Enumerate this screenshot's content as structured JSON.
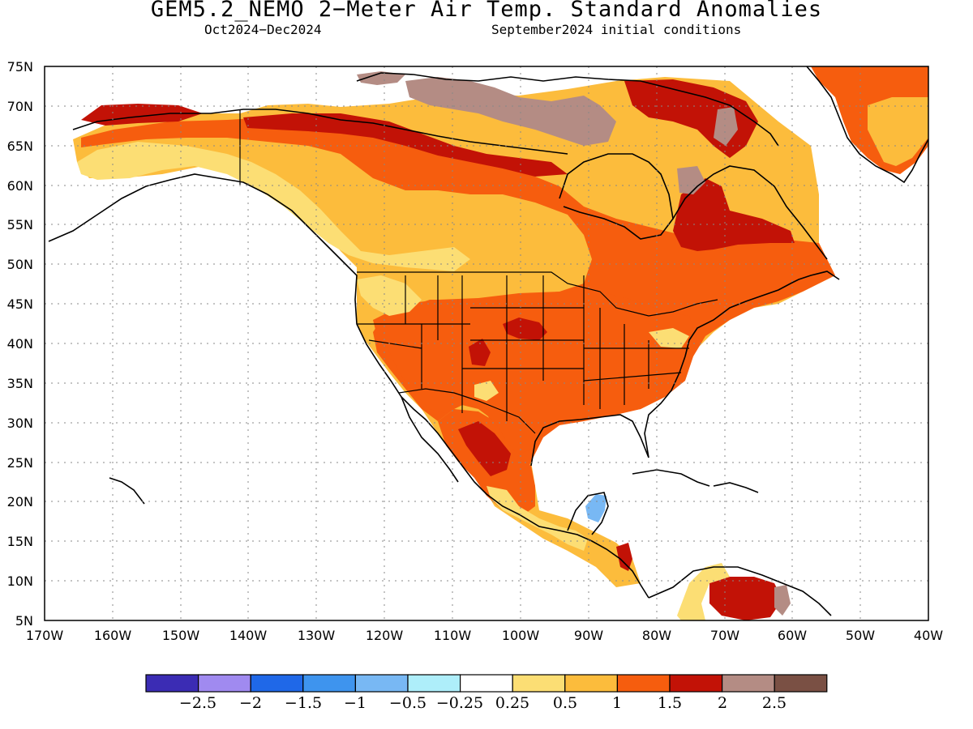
{
  "title": "GEM5.2_NEMO 2−Meter Air Temp. Standard Anomalies",
  "subtitle_left": "Oct2024−Dec2024",
  "subtitle_right": "September2024 initial conditions",
  "map": {
    "projection": "cylindrical equidistant",
    "lon_range": [
      -170,
      -40
    ],
    "lat_range": [
      5,
      75
    ],
    "grid": "dotted",
    "lat_ticks": [
      "5N",
      "10N",
      "15N",
      "20N",
      "25N",
      "30N",
      "35N",
      "40N",
      "45N",
      "50N",
      "55N",
      "60N",
      "65N",
      "70N",
      "75N"
    ],
    "lon_ticks": [
      "170W",
      "160W",
      "150W",
      "140W",
      "130W",
      "120W",
      "110W",
      "100W",
      "90W",
      "80W",
      "70W",
      "60W",
      "50W",
      "40W"
    ]
  },
  "colorbar": {
    "colors": [
      "#3b2cb4",
      "#a08af0",
      "#1f68e8",
      "#3e94ee",
      "#78b8f4",
      "#aeeefa",
      "#ffffff",
      "#fcde74",
      "#fcbc3c",
      "#f65d0e",
      "#c21206",
      "#b48c84",
      "#7a5044"
    ],
    "labels": [
      "−2.5",
      "−2",
      "−1.5",
      "−1",
      "−0.5",
      "−0.25",
      "0.25",
      "0.5",
      "1",
      "1.5",
      "2",
      "2.5"
    ]
  },
  "regions": [
    {
      "level": 7,
      "color": "#fcde74",
      "desc": "moderate warm anomaly (0.25 to 0.5)"
    },
    {
      "level": 8,
      "color": "#fcbc3c",
      "desc": "warm anomaly (0.5 to 1)"
    },
    {
      "level": 9,
      "color": "#f65d0e",
      "desc": "strong warm anomaly (1 to 1.5)"
    },
    {
      "level": 10,
      "color": "#c21206",
      "desc": "very strong warm anomaly (1.5 to 2)"
    },
    {
      "level": 11,
      "color": "#b48c84",
      "desc": "extreme warm anomaly (2 to 2.5)"
    },
    {
      "level": 4,
      "color": "#78b8f4",
      "desc": "cool anomaly (-1 to -0.5)"
    }
  ]
}
